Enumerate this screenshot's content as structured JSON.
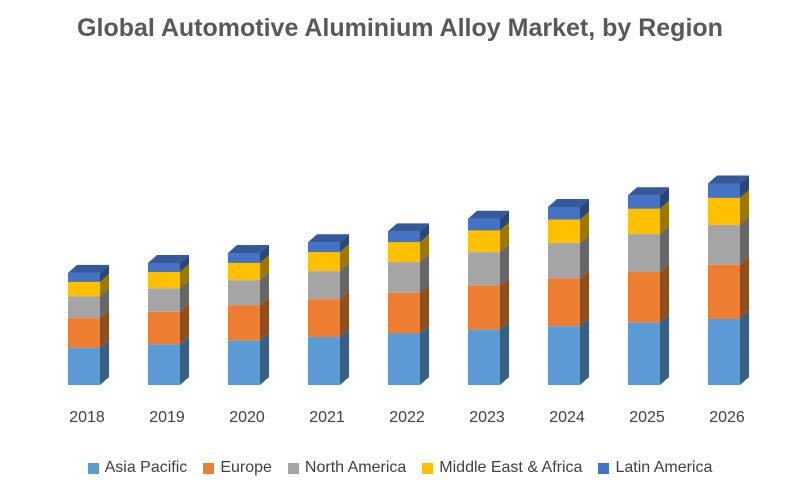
{
  "chart_data": {
    "type": "bar",
    "stacked": true,
    "style": "3d-column",
    "title": "Global Automotive Aluminium Alloy Market, by Region",
    "xlabel": "",
    "ylabel": "",
    "categories": [
      "2018",
      "2019",
      "2020",
      "2021",
      "2022",
      "2023",
      "2024",
      "2025",
      "2026"
    ],
    "series": [
      {
        "name": "Asia Pacific",
        "color": "#5B9BD5",
        "values": [
          41,
          45,
          49,
          53,
          57,
          61,
          65,
          69,
          73
        ]
      },
      {
        "name": "Europe",
        "color": "#ED7D31",
        "values": [
          33,
          36,
          39,
          42,
          45,
          49,
          53,
          56,
          60
        ]
      },
      {
        "name": "North America",
        "color": "#A5A5A5",
        "values": [
          24,
          26,
          28,
          31,
          34,
          37,
          39,
          42,
          44
        ]
      },
      {
        "name": "Middle East & Africa",
        "color": "#FFC000",
        "values": [
          16,
          18,
          19,
          21,
          22,
          24,
          26,
          28,
          30
        ]
      },
      {
        "name": "Latin America",
        "color": "#4472C4",
        "values": [
          10,
          10,
          11,
          11,
          12,
          13,
          14,
          15,
          16
        ]
      }
    ],
    "ylim": [
      0,
      260
    ],
    "grid": false,
    "legend_position": "bottom"
  }
}
